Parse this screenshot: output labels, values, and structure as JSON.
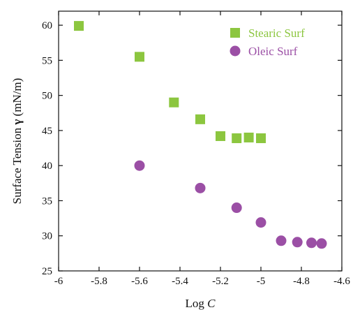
{
  "chart_data": {
    "type": "scatter",
    "title": "",
    "xlabel_prefix": "Log ",
    "xlabel_var": "C",
    "ylabel_prefix": "Surface Tension ",
    "ylabel_symbol": "γ",
    "ylabel_suffix": " (mN/m)",
    "xlim": [
      -6,
      -4.6
    ],
    "ylim": [
      25,
      62
    ],
    "x_ticks": [
      -6,
      -5.8,
      -5.6,
      -5.4,
      -5.2,
      -5,
      -4.8,
      -4.6
    ],
    "x_tick_labels": [
      "-6",
      "-5.8",
      "-5.6",
      "-5.4",
      "-5.2",
      "-5",
      "-4.8",
      "-4.6"
    ],
    "y_ticks": [
      25,
      30,
      35,
      40,
      45,
      50,
      55,
      60
    ],
    "y_tick_labels": [
      "25",
      "30",
      "35",
      "40",
      "45",
      "50",
      "55",
      "60"
    ],
    "grid": false,
    "legend_position": "top-right",
    "series": [
      {
        "name": "Stearic Surf",
        "marker": "square",
        "color": "#8cc63f",
        "points": [
          {
            "x": -5.9,
            "y": 59.9
          },
          {
            "x": -5.6,
            "y": 55.5
          },
          {
            "x": -5.43,
            "y": 49.0
          },
          {
            "x": -5.3,
            "y": 46.6
          },
          {
            "x": -5.2,
            "y": 44.2
          },
          {
            "x": -5.12,
            "y": 43.9
          },
          {
            "x": -5.06,
            "y": 44.0
          },
          {
            "x": -5.0,
            "y": 43.9
          }
        ]
      },
      {
        "name": "Oleic Surf",
        "marker": "circle",
        "color": "#9b4fa5",
        "points": [
          {
            "x": -5.6,
            "y": 40.0
          },
          {
            "x": -5.3,
            "y": 36.8
          },
          {
            "x": -5.12,
            "y": 34.0
          },
          {
            "x": -5.0,
            "y": 31.9
          },
          {
            "x": -4.9,
            "y": 29.3
          },
          {
            "x": -4.82,
            "y": 29.1
          },
          {
            "x": -4.75,
            "y": 29.0
          },
          {
            "x": -4.7,
            "y": 28.9
          }
        ]
      }
    ]
  }
}
